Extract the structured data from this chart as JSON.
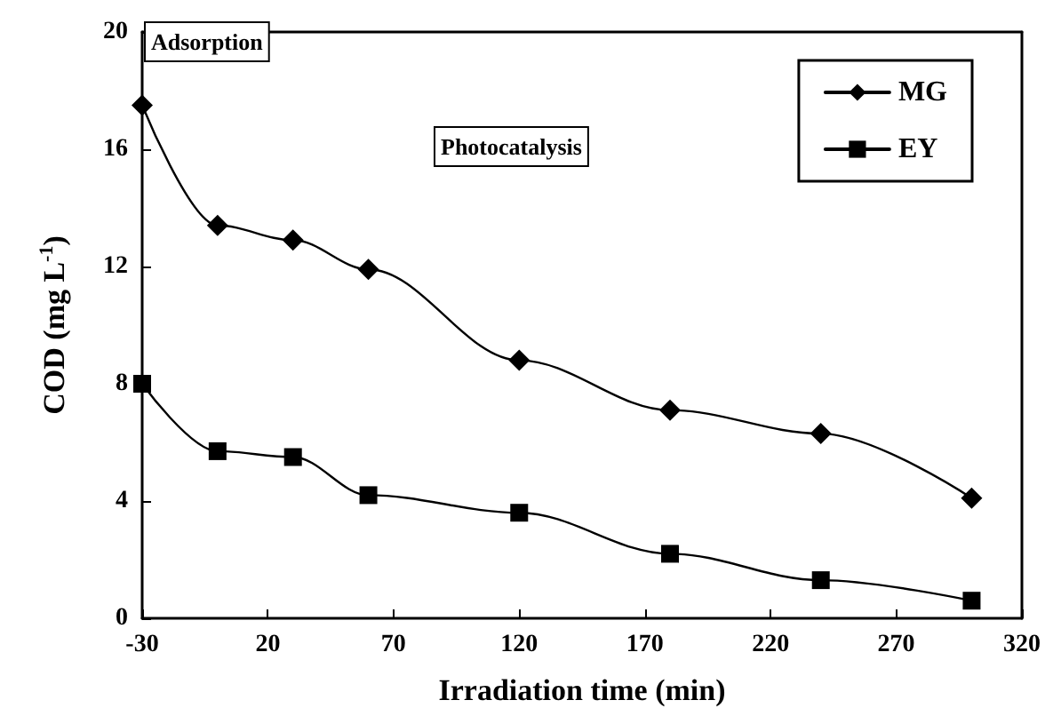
{
  "chart_data": {
    "type": "line",
    "xlabel": "Irradiation time (min)",
    "ylabel": "COD (mg L$^{-1}$)",
    "x": [
      -30,
      0,
      30,
      60,
      120,
      180,
      240,
      300
    ],
    "series": [
      {
        "name": "MG",
        "color": "#000000",
        "marker": "diamond",
        "values": [
          17.5,
          13.4,
          12.9,
          11.9,
          8.8,
          7.1,
          6.3,
          4.1
        ]
      },
      {
        "name": "EY",
        "color": "#000000",
        "marker": "square",
        "values": [
          8.0,
          5.7,
          5.5,
          4.2,
          3.6,
          2.2,
          1.3,
          0.6
        ]
      }
    ],
    "xlim": [
      -30,
      320
    ],
    "xticks": [
      -30,
      20,
      70,
      120,
      170,
      220,
      270,
      320
    ],
    "ylim": [
      0,
      20
    ],
    "yticks": [
      0,
      4,
      8,
      12,
      16,
      20
    ],
    "annotations": [
      "Adsorption",
      "Photocatalysis"
    ],
    "legend": "top right",
    "grid": false,
    "line_style": "solid"
  }
}
